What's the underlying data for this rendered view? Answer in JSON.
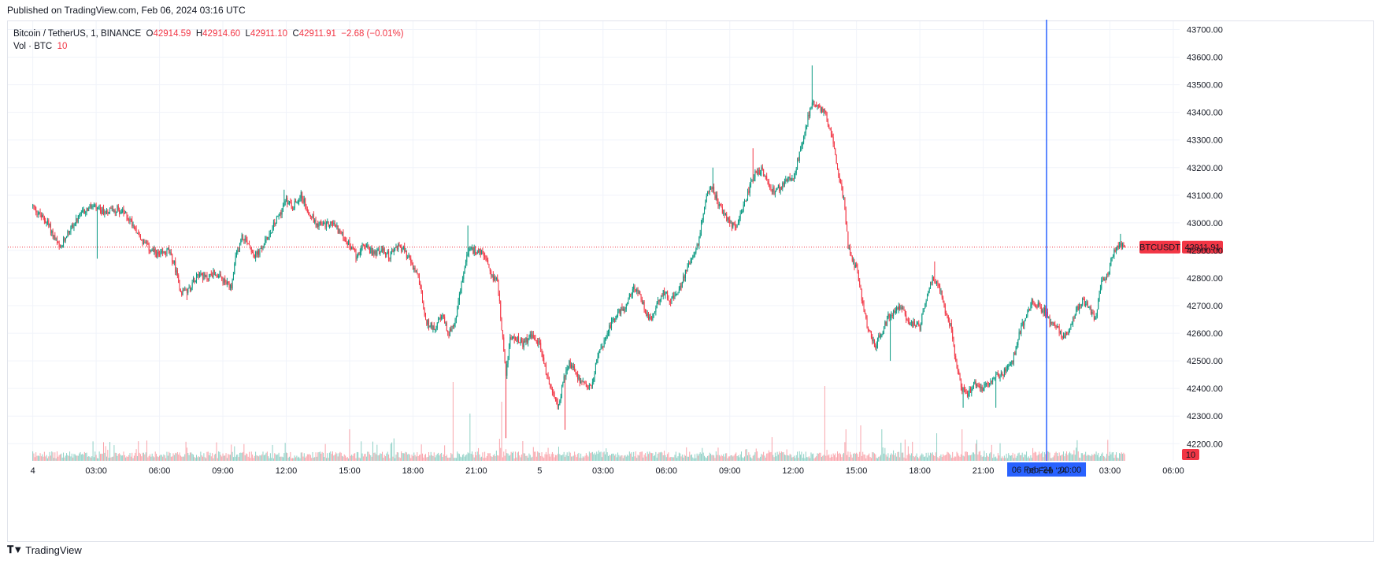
{
  "header": {
    "published": "Published on TradingView.com, Feb 06, 2024 03:16 UTC"
  },
  "legend": {
    "symbol": "Bitcoin / TetherUS, 1, BINANCE",
    "open_label": "O",
    "open": "42914.59",
    "high_label": "H",
    "high": "42914.60",
    "low_label": "L",
    "low": "42911.10",
    "close_label": "C",
    "close": "42911.91",
    "change": "−2.68 (−0.01%)",
    "vol_label": "Vol · BTC",
    "vol": "10"
  },
  "footer": {
    "brand": "TradingView",
    "logo_icon": "tradingview-logo-icon"
  },
  "colors": {
    "up": "#089981",
    "down": "#f23645",
    "crosshair": "#2962ff",
    "grid": "#f0f3fa"
  },
  "chart_data": {
    "type": "candlestick",
    "symbol": "BTCUSDT",
    "interval": "1",
    "last_price": 42911.91,
    "last_price_label": "42911.91",
    "symbol_label": "BTCUSDT",
    "volume_label": "10",
    "ylim": [
      42138,
      43730
    ],
    "y_ticks": [
      42200,
      42300,
      42400,
      42500,
      42600,
      42700,
      42800,
      42900,
      43000,
      43100,
      43200,
      43300,
      43400,
      43500,
      43600,
      43700
    ],
    "y_tick_labels": [
      "42200.00",
      "42300.00",
      "42400.00",
      "42500.00",
      "42600.00",
      "42700.00",
      "42800.00",
      "42900.00",
      "43000.00",
      "43100.00",
      "43200.00",
      "43300.00",
      "43400.00",
      "43500.00",
      "43600.00",
      "43700.00"
    ],
    "x_ticks": [
      "4",
      "03:00",
      "06:00",
      "09:00",
      "12:00",
      "15:00",
      "18:00",
      "21:00",
      "5",
      "03:00",
      "06:00",
      "09:00",
      "12:00",
      "15:00",
      "18:00",
      "21:00",
      "06 Feb '24",
      "03:00",
      "06:00"
    ],
    "x_tick_hours": [
      0,
      3,
      6,
      9,
      12,
      15,
      18,
      21,
      24,
      27,
      30,
      33,
      36,
      39,
      42,
      45,
      48,
      51,
      54
    ],
    "xlim_hours": [
      -1.18,
      54.3
    ],
    "crosshair": {
      "time_label": "06 Feb '24   00:00",
      "hour": 48
    },
    "price_path": [
      [
        0,
        43060
      ],
      [
        0.3,
        43030
      ],
      [
        0.7,
        43000
      ],
      [
        1.0,
        42950
      ],
      [
        1.3,
        42900
      ],
      [
        1.6,
        42960
      ],
      [
        2.0,
        43000
      ],
      [
        2.4,
        43040
      ],
      [
        2.8,
        43060
      ],
      [
        3.2,
        43040
      ],
      [
        3.6,
        43045
      ],
      [
        4.0,
        43050
      ],
      [
        4.4,
        43030
      ],
      [
        4.8,
        42990
      ],
      [
        5.2,
        42930
      ],
      [
        5.6,
        42900
      ],
      [
        6.0,
        42880
      ],
      [
        6.4,
        42900
      ],
      [
        6.7,
        42850
      ],
      [
        7.0,
        42750
      ],
      [
        7.4,
        42760
      ],
      [
        7.8,
        42820
      ],
      [
        8.2,
        42800
      ],
      [
        8.6,
        42820
      ],
      [
        9.0,
        42790
      ],
      [
        9.4,
        42760
      ],
      [
        9.6,
        42870
      ],
      [
        9.9,
        42950
      ],
      [
        10.2,
        42930
      ],
      [
        10.5,
        42880
      ],
      [
        10.8,
        42900
      ],
      [
        11.2,
        42960
      ],
      [
        11.6,
        43020
      ],
      [
        12.0,
        43080
      ],
      [
        12.3,
        43060
      ],
      [
        12.7,
        43100
      ],
      [
        13.0,
        43050
      ],
      [
        13.4,
        43000
      ],
      [
        13.8,
        42990
      ],
      [
        14.2,
        43000
      ],
      [
        14.6,
        42960
      ],
      [
        15.0,
        42920
      ],
      [
        15.3,
        42880
      ],
      [
        15.7,
        42920
      ],
      [
        16.1,
        42890
      ],
      [
        16.5,
        42900
      ],
      [
        16.9,
        42880
      ],
      [
        17.3,
        42920
      ],
      [
        17.6,
        42900
      ],
      [
        18.0,
        42840
      ],
      [
        18.3,
        42790
      ],
      [
        18.6,
        42640
      ],
      [
        19.0,
        42620
      ],
      [
        19.4,
        42660
      ],
      [
        19.7,
        42600
      ],
      [
        20.0,
        42640
      ],
      [
        20.3,
        42780
      ],
      [
        20.6,
        42900
      ],
      [
        21.0,
        42900
      ],
      [
        21.4,
        42880
      ],
      [
        21.7,
        42800
      ],
      [
        22.0,
        42800
      ],
      [
        22.2,
        42620
      ],
      [
        22.4,
        42450
      ],
      [
        22.6,
        42580
      ],
      [
        22.9,
        42580
      ],
      [
        23.2,
        42560
      ],
      [
        23.6,
        42590
      ],
      [
        24.0,
        42560
      ],
      [
        24.3,
        42460
      ],
      [
        24.6,
        42380
      ],
      [
        24.9,
        42340
      ],
      [
        25.1,
        42420
      ],
      [
        25.4,
        42490
      ],
      [
        25.7,
        42460
      ],
      [
        26.0,
        42420
      ],
      [
        26.4,
        42400
      ],
      [
        26.7,
        42500
      ],
      [
        27.0,
        42560
      ],
      [
        27.4,
        42640
      ],
      [
        27.8,
        42680
      ],
      [
        28.1,
        42700
      ],
      [
        28.4,
        42760
      ],
      [
        28.7,
        42750
      ],
      [
        29.0,
        42680
      ],
      [
        29.3,
        42650
      ],
      [
        29.6,
        42720
      ],
      [
        29.9,
        42750
      ],
      [
        30.2,
        42720
      ],
      [
        30.6,
        42750
      ],
      [
        30.9,
        42820
      ],
      [
        31.2,
        42880
      ],
      [
        31.5,
        42920
      ],
      [
        31.8,
        43060
      ],
      [
        32.1,
        43140
      ],
      [
        32.4,
        43080
      ],
      [
        32.7,
        43040
      ],
      [
        33.0,
        43000
      ],
      [
        33.3,
        42980
      ],
      [
        33.6,
        43040
      ],
      [
        33.9,
        43120
      ],
      [
        34.2,
        43180
      ],
      [
        34.5,
        43190
      ],
      [
        34.8,
        43140
      ],
      [
        35.1,
        43110
      ],
      [
        35.4,
        43130
      ],
      [
        35.7,
        43160
      ],
      [
        36.0,
        43150
      ],
      [
        36.3,
        43250
      ],
      [
        36.6,
        43350
      ],
      [
        36.9,
        43440
      ],
      [
        37.2,
        43420
      ],
      [
        37.5,
        43400
      ],
      [
        37.8,
        43330
      ],
      [
        38.1,
        43200
      ],
      [
        38.4,
        43080
      ],
      [
        38.6,
        42920
      ],
      [
        38.8,
        42860
      ],
      [
        39.0,
        42840
      ],
      [
        39.3,
        42700
      ],
      [
        39.6,
        42600
      ],
      [
        39.9,
        42560
      ],
      [
        40.2,
        42600
      ],
      [
        40.5,
        42660
      ],
      [
        40.8,
        42680
      ],
      [
        41.1,
        42700
      ],
      [
        41.4,
        42650
      ],
      [
        41.7,
        42630
      ],
      [
        42.0,
        42620
      ],
      [
        42.3,
        42730
      ],
      [
        42.6,
        42800
      ],
      [
        42.9,
        42780
      ],
      [
        43.2,
        42680
      ],
      [
        43.5,
        42620
      ],
      [
        43.7,
        42500
      ],
      [
        44.0,
        42400
      ],
      [
        44.3,
        42380
      ],
      [
        44.6,
        42420
      ],
      [
        44.9,
        42400
      ],
      [
        45.2,
        42410
      ],
      [
        45.5,
        42450
      ],
      [
        45.8,
        42440
      ],
      [
        46.1,
        42470
      ],
      [
        46.4,
        42500
      ],
      [
        46.7,
        42600
      ],
      [
        47.0,
        42660
      ],
      [
        47.3,
        42710
      ],
      [
        47.6,
        42700
      ],
      [
        47.9,
        42680
      ],
      [
        48.2,
        42640
      ],
      [
        48.5,
        42620
      ],
      [
        48.8,
        42590
      ],
      [
        49.1,
        42610
      ],
      [
        49.4,
        42680
      ],
      [
        49.7,
        42720
      ],
      [
        50.0,
        42700
      ],
      [
        50.3,
        42650
      ],
      [
        50.6,
        42780
      ],
      [
        50.9,
        42820
      ],
      [
        51.2,
        42900
      ],
      [
        51.5,
        42930
      ],
      [
        51.7,
        42911.91
      ]
    ],
    "extremes": [
      [
        3.05,
        42870,
        "low"
      ],
      [
        7.3,
        42720,
        "low"
      ],
      [
        11.9,
        43120,
        "high"
      ],
      [
        19.65,
        42590,
        "low"
      ],
      [
        20.6,
        42990,
        "high"
      ],
      [
        22.4,
        42220,
        "low"
      ],
      [
        25.2,
        42250,
        "low"
      ],
      [
        32.2,
        43200,
        "high"
      ],
      [
        34.1,
        43270,
        "high"
      ],
      [
        36.9,
        43570,
        "high"
      ],
      [
        40.6,
        42500,
        "low"
      ],
      [
        42.7,
        42860,
        "high"
      ],
      [
        44.05,
        42330,
        "low"
      ],
      [
        45.6,
        42330,
        "low"
      ],
      [
        48.8,
        42580,
        "low"
      ],
      [
        51.5,
        42960,
        "high"
      ]
    ],
    "volume_spikes": [
      [
        19.9,
        100
      ],
      [
        20.7,
        60
      ],
      [
        22.2,
        75
      ],
      [
        15.0,
        40
      ],
      [
        23.2,
        25
      ],
      [
        35.0,
        30
      ],
      [
        37.5,
        95
      ],
      [
        39.2,
        45
      ],
      [
        40.2,
        40
      ],
      [
        44.0,
        40
      ],
      [
        38.5,
        40
      ],
      [
        42.8,
        35
      ],
      [
        48.5,
        10
      ]
    ]
  }
}
